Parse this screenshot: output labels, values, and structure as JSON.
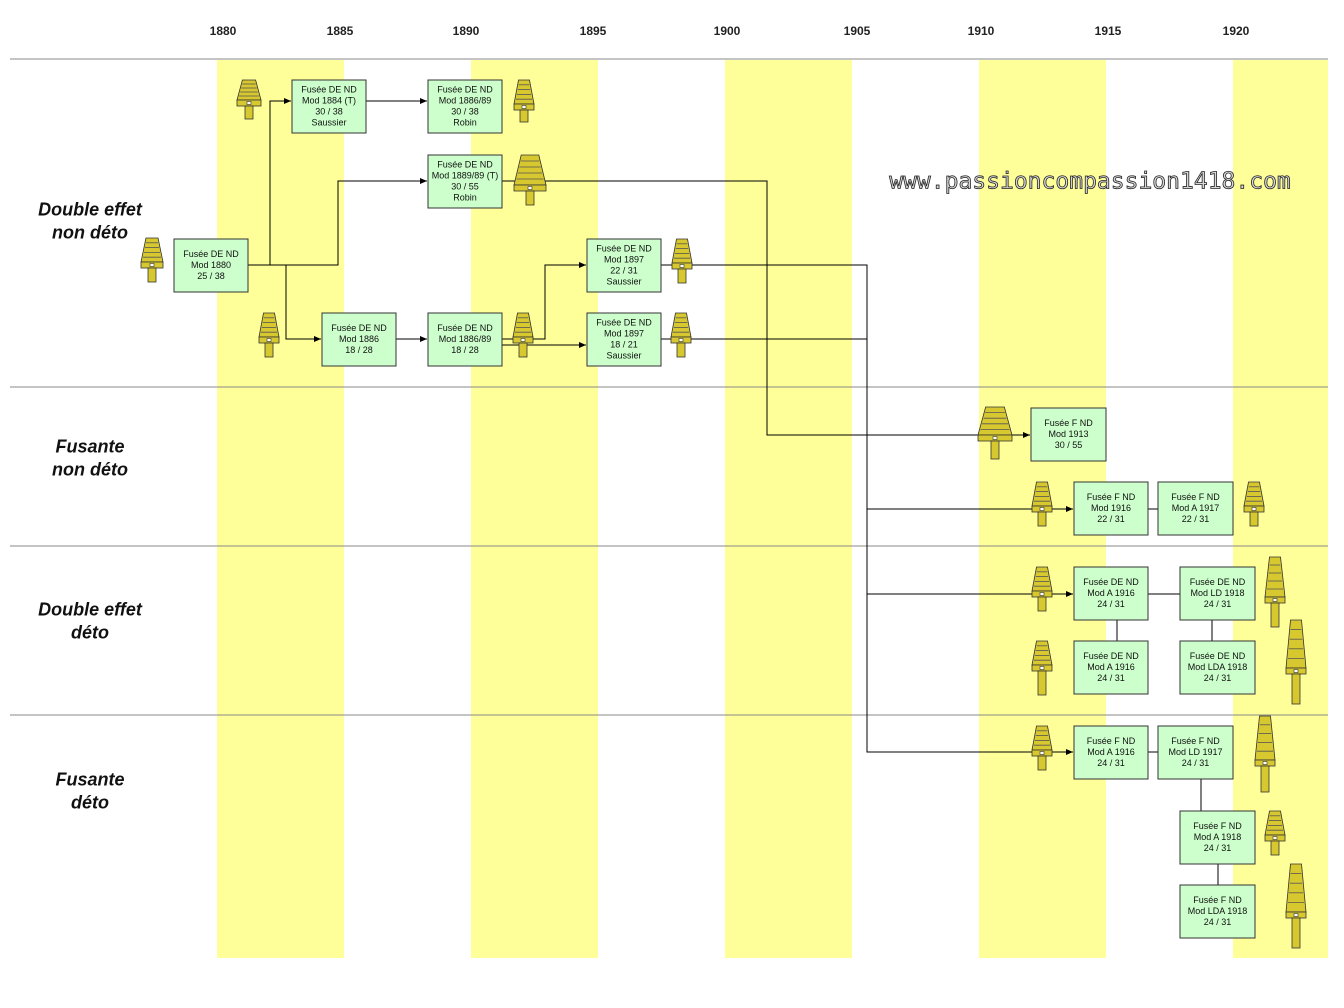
{
  "years": [
    "1880",
    "1885",
    "1890",
    "1895",
    "1900",
    "1905",
    "1910",
    "1915",
    "1920"
  ],
  "rows": [
    {
      "lines": [
        "Double effet",
        "non déto"
      ]
    },
    {
      "lines": [
        "Fusante",
        "non déto"
      ]
    },
    {
      "lines": [
        "Double effet",
        "déto"
      ]
    },
    {
      "lines": [
        "Fusante",
        "déto"
      ]
    }
  ],
  "watermark": "www.passioncompassion1418.com",
  "nodes": [
    {
      "lines": [
        "Fusée DE ND",
        "Mod 1880",
        "25 / 38"
      ]
    },
    {
      "lines": [
        "Fusée DE ND",
        "Mod 1884 (T)",
        "30 / 38",
        "Saussier"
      ]
    },
    {
      "lines": [
        "Fusée DE ND",
        "Mod 1886/89",
        "30 / 38",
        "Robin"
      ]
    },
    {
      "lines": [
        "Fusée DE ND",
        "Mod 1889/89 (T)",
        "30 / 55",
        "Robin"
      ]
    },
    {
      "lines": [
        "Fusée DE ND",
        "Mod 1897",
        "22 / 31",
        "Saussier"
      ]
    },
    {
      "lines": [
        "Fusée DE ND",
        "Mod 1886",
        "18 / 28"
      ]
    },
    {
      "lines": [
        "Fusée DE ND",
        "Mod 1886/89",
        "18 / 28"
      ]
    },
    {
      "lines": [
        "Fusée DE ND",
        "Mod 1897",
        "18 / 21",
        "Saussier"
      ]
    },
    {
      "lines": [
        "Fusée F ND",
        "Mod 1913",
        "30 / 55"
      ]
    },
    {
      "lines": [
        "Fusée F ND",
        "Mod 1916",
        "22 / 31"
      ]
    },
    {
      "lines": [
        "Fusée F ND",
        "Mod A 1917",
        "22 / 31"
      ]
    },
    {
      "lines": [
        "Fusée DE ND",
        "Mod A 1916",
        "24 / 31"
      ]
    },
    {
      "lines": [
        "Fusée DE ND",
        "Mod LD 1918",
        "24 / 31"
      ]
    },
    {
      "lines": [
        "Fusée DE ND",
        "Mod A 1916",
        "24 / 31"
      ]
    },
    {
      "lines": [
        "Fusée DE ND",
        "Mod LDA 1918",
        "24 / 31"
      ]
    },
    {
      "lines": [
        "Fusée F ND",
        "Mod A 1916",
        "24 / 31"
      ]
    },
    {
      "lines": [
        "Fusée F ND",
        "Mod LD 1917",
        "24 / 31"
      ]
    },
    {
      "lines": [
        "Fusée F ND",
        "Mod A 1918",
        "24 / 31"
      ]
    },
    {
      "lines": [
        "Fusée F ND",
        "Mod LDA 1918",
        "24 / 31"
      ]
    }
  ]
}
